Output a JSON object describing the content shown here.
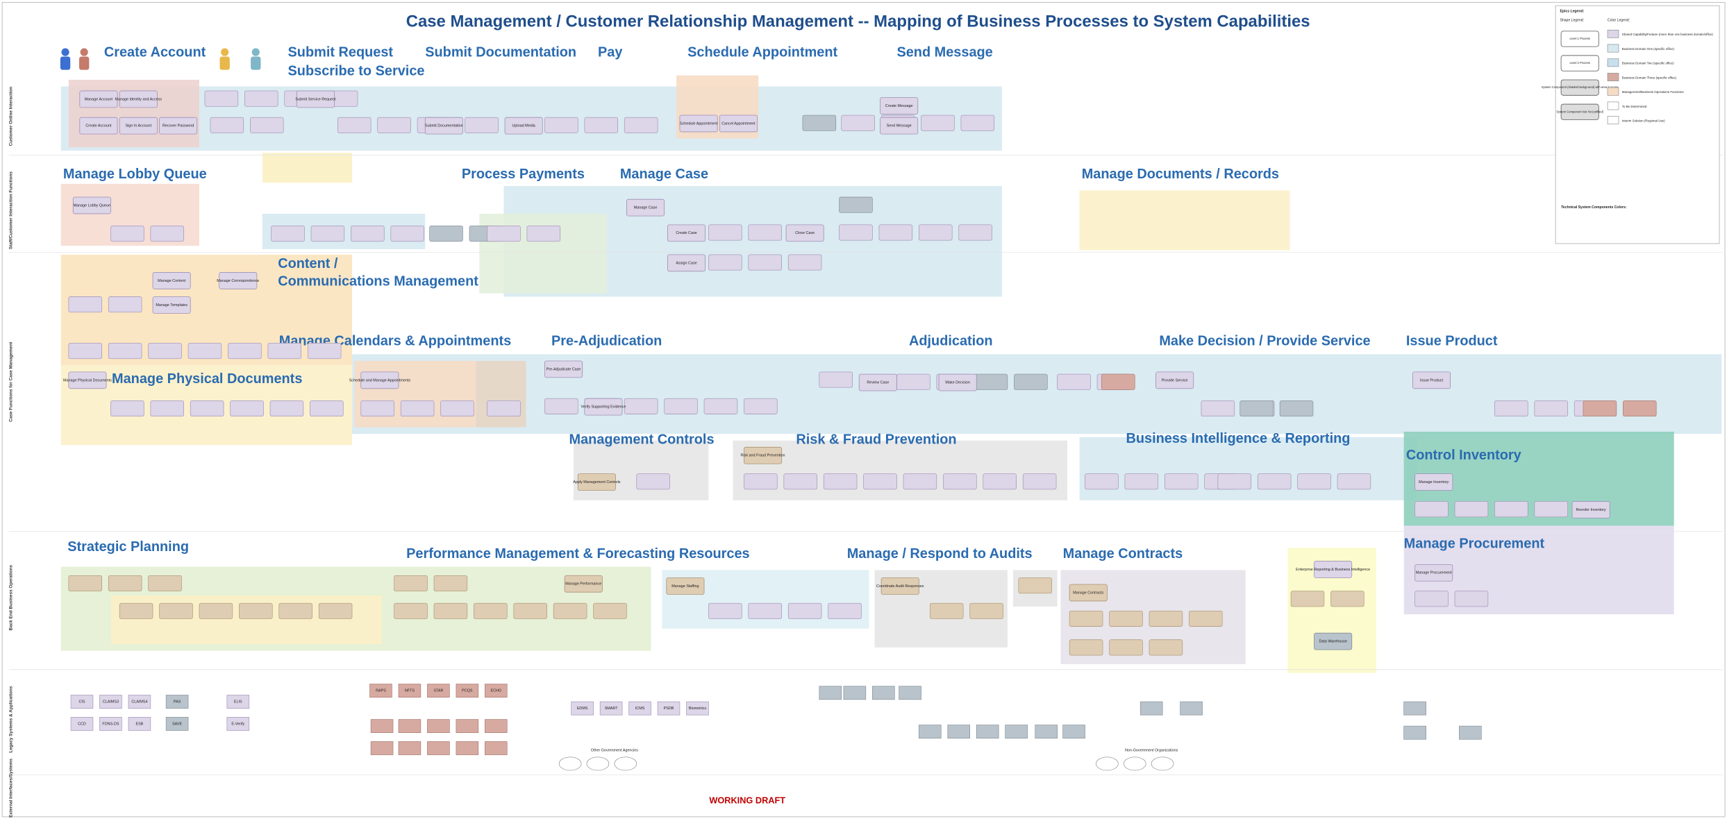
{
  "title": "Case Management / Customer Relationship Management -- Mapping of Business Processes to System Capabilities",
  "footer": "WORKING DRAFT",
  "lanes": [
    "Customer Online Interaction",
    "Staff/Customer Interaction Functions",
    "Case Functions for Case Management",
    "Back End Business Operations",
    "Legacy Systems & Applications",
    "External Interfaces/Systems"
  ],
  "sections": [
    "Create Account",
    "Submit Request",
    "Subscribe to Service",
    "Submit Documentation",
    "Pay",
    "Schedule Appointment",
    "Send Message",
    "Manage Lobby Queue",
    "Process Payments",
    "Manage Case",
    "Manage Documents / Records",
    "Content /",
    "Communications Management",
    "Manage Calendars & Appointments",
    "Pre-Adjudication",
    "Adjudication",
    "Make Decision / Provide Service",
    "Issue Product",
    "Manage Physical Documents",
    "Management Controls",
    "Risk & Fraud Prevention",
    "Business Intelligence & Reporting",
    "Control Inventory",
    "Strategic Planning",
    "Performance Management & Forecasting Resources",
    "Manage / Respond to Audits",
    "Manage Contracts",
    "Manage Procurement"
  ],
  "boxes": [
    "Manage Account",
    "Manage Identity and Access",
    "Create Account",
    "Sign In Account",
    "Recover Password",
    "Submit Service Request",
    "Submit Documentation",
    "Upload Media",
    "Schedule Appointment",
    "Cancel Appointment",
    "Create Message",
    "Send Message",
    "Manage Lobby Queue",
    "Manage Case",
    "Create Case",
    "Assign Case",
    "Close Case",
    "Manage Content",
    "Manage Templates",
    "Manage Correspondence",
    "Manage Physical Documents",
    "Schedule and Manage Appointments",
    "Pre-Adjudicate Case",
    "Verify Supporting Evidence",
    "Review Case",
    "Make Decision",
    "Provide Service",
    "Issue Product",
    "Manage Inventory",
    "Reorder Inventory",
    "Manage Procurement",
    "Manage Contracts",
    "Apply Management Controls",
    "Risk and Fraud Prevention",
    "Manage Staffing",
    "Manage Performance",
    "Coordinate Audit Responses",
    "Enterprise Reporting & Business Intelligence",
    "Data Warehouse"
  ],
  "systems": [
    "CIS",
    "CLAIMS3",
    "CLAIMS4",
    "PAS",
    "ELIS",
    "CCD",
    "FDNS-DS",
    "ESB",
    "SAVE",
    "E-Verify",
    "RAPS",
    "NFTS",
    "STAR",
    "PCQS",
    "ECHO",
    "EDMS",
    "SMART",
    "ICMS",
    "PSDB",
    "Biometrics"
  ],
  "external_groups": [
    "Other Government Agencies",
    "Non-Government Organizations"
  ],
  "legend": {
    "heading": "Epics Legend:",
    "shape_heading": "Shape Legend:",
    "shapes": [
      "Level 1 Process",
      "Level 2 Process",
      "System Component (shaded background) with area in scope",
      "System Component Not Yet (unfilled)"
    ],
    "color_heading": "Color Legend:",
    "colors": [
      "Shared Capability/Feature (more than one business domain/office)",
      "Business Domain One (specific office)",
      "Business Domain Two (specific office)",
      "Business Domain Three (specific office)",
      "Management/Business Operations Functions",
      "To Be Determined",
      "Interim Solution (Regional Use)"
    ],
    "tech_heading": "Technical System Components Colors:"
  }
}
